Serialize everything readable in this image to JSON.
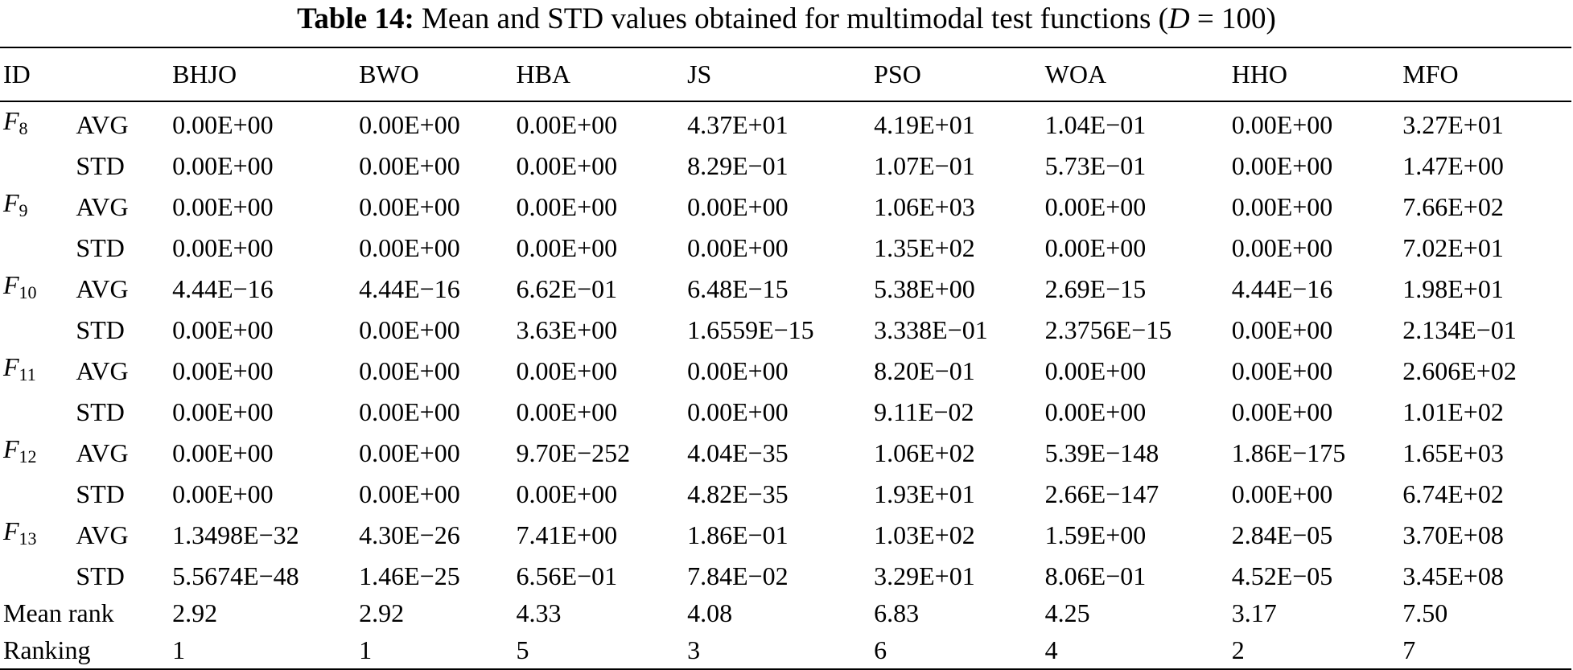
{
  "caption": {
    "label": "Table 14:",
    "text": "Mean and STD values obtained for multimodal test functions (",
    "math_var": "D",
    "math_rest": " = 100)"
  },
  "columns": [
    "ID",
    "",
    "BHJO",
    "BWO",
    "HBA",
    "JS",
    "PSO",
    "WOA",
    "HHO",
    "MFO"
  ],
  "functions": [
    {
      "name": "F",
      "sub": "8",
      "rows": [
        {
          "stat": "AVG",
          "values": [
            "0.00E+00",
            "0.00E+00",
            "0.00E+00",
            "4.37E+01",
            "4.19E+01",
            "1.04E−01",
            "0.00E+00",
            "3.27E+01"
          ],
          "bold": [
            true,
            true,
            true,
            false,
            false,
            false,
            true,
            false
          ]
        },
        {
          "stat": "STD",
          "values": [
            "0.00E+00",
            "0.00E+00",
            "0.00E+00",
            "8.29E−01",
            "1.07E−01",
            "5.73E−01",
            "0.00E+00",
            "1.47E+00"
          ],
          "bold": [
            true,
            true,
            true,
            false,
            false,
            false,
            true,
            false
          ]
        }
      ]
    },
    {
      "name": "F",
      "sub": "9",
      "rows": [
        {
          "stat": "AVG",
          "values": [
            "0.00E+00",
            "0.00E+00",
            "0.00E+00",
            "0.00E+00",
            "1.06E+03",
            "0.00E+00",
            "0.00E+00",
            "7.66E+02"
          ],
          "bold": [
            true,
            true,
            true,
            true,
            false,
            true,
            true,
            false
          ]
        },
        {
          "stat": "STD",
          "values": [
            "0.00E+00",
            "0.00E+00",
            "0.00E+00",
            "0.00E+00",
            "1.35E+02",
            "0.00E+00",
            "0.00E+00",
            "7.02E+01"
          ],
          "bold": [
            true,
            true,
            true,
            true,
            false,
            true,
            true,
            false
          ]
        }
      ]
    },
    {
      "name": "F",
      "sub": "10",
      "rows": [
        {
          "stat": "AVG",
          "values": [
            "4.44E−16",
            "4.44E−16",
            "6.62E−01",
            "6.48E−15",
            "5.38E+00",
            "2.69E−15",
            "4.44E−16",
            "1.98E+01"
          ],
          "bold": [
            true,
            true,
            false,
            false,
            false,
            false,
            true,
            false
          ]
        },
        {
          "stat": "STD",
          "values": [
            "0.00E+00",
            "0.00E+00",
            "3.63E+00",
            "1.6559E−15",
            "3.338E−01",
            "2.3756E−15",
            "0.00E+00",
            "2.134E−01"
          ],
          "bold": [
            true,
            true,
            false,
            false,
            false,
            false,
            true,
            false
          ]
        }
      ]
    },
    {
      "name": "F",
      "sub": "11",
      "rows": [
        {
          "stat": "AVG",
          "values": [
            "0.00E+00",
            "0.00E+00",
            "0.00E+00",
            "0.00E+00",
            "8.20E−01",
            "0.00E+00",
            "0.00E+00",
            "2.606E+02"
          ],
          "bold": [
            true,
            true,
            true,
            true,
            false,
            true,
            true,
            false
          ]
        },
        {
          "stat": "STD",
          "values": [
            "0.00E+00",
            "0.00E+00",
            "0.00E+00",
            "0.00E+00",
            "9.11E−02",
            "0.00E+00",
            "0.00E+00",
            "1.01E+02"
          ],
          "bold": [
            true,
            true,
            true,
            true,
            false,
            true,
            true,
            false
          ]
        }
      ]
    },
    {
      "name": "F",
      "sub": "12",
      "rows": [
        {
          "stat": "AVG",
          "values": [
            "0.00E+00",
            "0.00E+00",
            "9.70E−252",
            "4.04E−35",
            "1.06E+02",
            "5.39E−148",
            "1.86E−175",
            "1.65E+03"
          ],
          "bold": [
            true,
            true,
            true,
            false,
            false,
            false,
            true,
            false
          ]
        },
        {
          "stat": "STD",
          "values": [
            "0.00E+00",
            "0.00E+00",
            "0.00E+00",
            "4.82E−35",
            "1.93E+01",
            "2.66E−147",
            "0.00E+00",
            "6.74E+02"
          ],
          "bold": [
            true,
            true,
            true,
            false,
            false,
            false,
            true,
            false
          ]
        }
      ]
    },
    {
      "name": "F",
      "sub": "13",
      "rows": [
        {
          "stat": "AVG",
          "values": [
            "1.3498E−32",
            "4.30E−26",
            "7.41E+00",
            "1.86E−01",
            "1.03E+02",
            "1.59E+00",
            "2.84E−05",
            "3.70E+08"
          ],
          "bold": [
            true,
            false,
            false,
            false,
            false,
            false,
            false,
            false
          ]
        },
        {
          "stat": "STD",
          "values": [
            "5.5674E−48",
            "1.46E−25",
            "6.56E−01",
            "7.84E−02",
            "3.29E+01",
            "8.06E−01",
            "4.52E−05",
            "3.45E+08"
          ],
          "bold": [
            true,
            false,
            false,
            false,
            false,
            false,
            false,
            false
          ]
        }
      ]
    }
  ],
  "summary": [
    {
      "label": "Mean rank",
      "values": [
        "2.92",
        "2.92",
        "4.33",
        "4.08",
        "6.83",
        "4.25",
        "3.17",
        "7.50"
      ]
    },
    {
      "label": "Ranking",
      "values": [
        "1",
        "1",
        "5",
        "3",
        "6",
        "4",
        "2",
        "7"
      ]
    }
  ]
}
